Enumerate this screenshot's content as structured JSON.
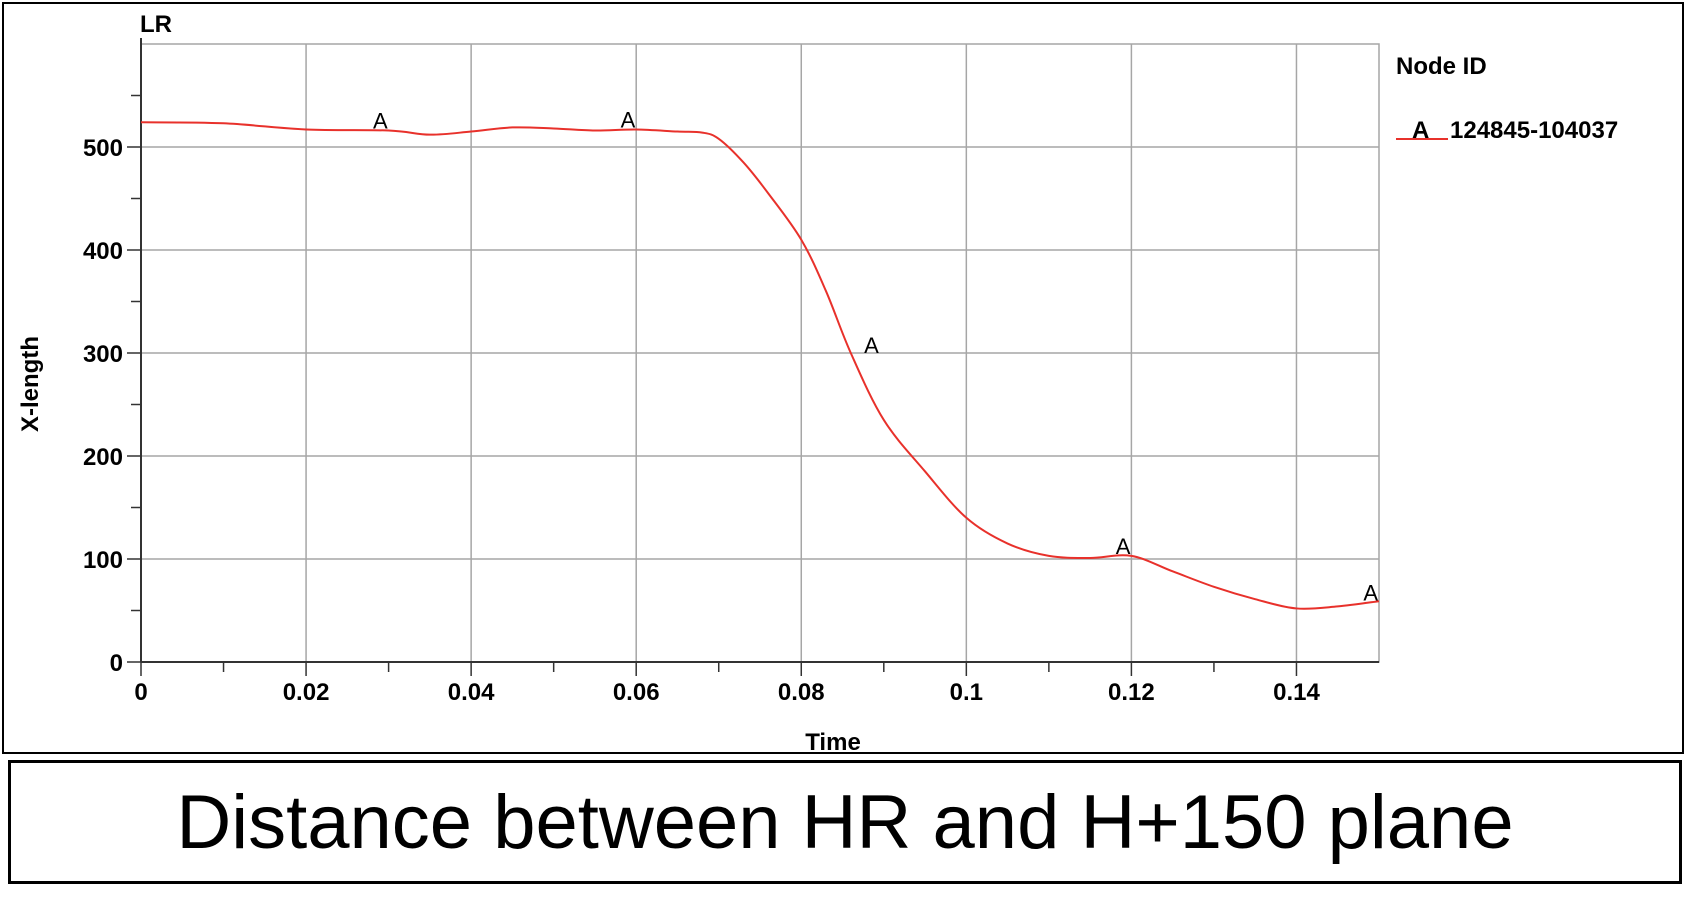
{
  "chart_data": {
    "type": "line",
    "title": "LR",
    "xlabel": "Time",
    "ylabel": "X-length",
    "xlim": [
      0,
      0.15
    ],
    "ylim": [
      0,
      600
    ],
    "x_ticks": [
      0,
      0.02,
      0.04,
      0.06,
      0.08,
      0.1,
      0.12,
      0.14
    ],
    "x_tick_labels": [
      "0",
      "0.02",
      "0.04",
      "0.06",
      "0.08",
      "0.1",
      "0.12",
      "0.14"
    ],
    "y_ticks": [
      0,
      100,
      200,
      300,
      400,
      500
    ],
    "y_tick_labels": [
      "0",
      "100",
      "200",
      "300",
      "400",
      "500"
    ],
    "grid": true,
    "legend": {
      "title": "Node ID",
      "placement": "right"
    },
    "series": [
      {
        "name": "124845-104037",
        "marker_label": "A",
        "color": "#e8312b",
        "x": [
          0,
          0.01,
          0.02,
          0.03,
          0.035,
          0.04,
          0.045,
          0.05,
          0.055,
          0.06,
          0.065,
          0.068,
          0.07,
          0.073,
          0.076,
          0.08,
          0.083,
          0.086,
          0.09,
          0.095,
          0.1,
          0.105,
          0.11,
          0.115,
          0.12,
          0.125,
          0.13,
          0.135,
          0.14,
          0.145,
          0.15
        ],
        "y": [
          524,
          523,
          517,
          516,
          512,
          515,
          519,
          518,
          516,
          517,
          515,
          514,
          508,
          485,
          455,
          410,
          360,
          300,
          235,
          185,
          140,
          115,
          103,
          101,
          103,
          88,
          73,
          61,
          52,
          54,
          59
        ]
      }
    ],
    "markers": [
      {
        "x": 0.029,
        "y": 516,
        "label": "A"
      },
      {
        "x": 0.059,
        "y": 517,
        "label": "A"
      },
      {
        "x": 0.0885,
        "y": 298,
        "label": "A"
      },
      {
        "x": 0.119,
        "y": 103,
        "label": "A"
      },
      {
        "x": 0.149,
        "y": 58,
        "label": "A"
      }
    ]
  },
  "caption": "Distance between HR and H+150 plane",
  "colors": {
    "series": "#e8312b",
    "grid": "#a6a6a6",
    "axis": "#333333"
  }
}
